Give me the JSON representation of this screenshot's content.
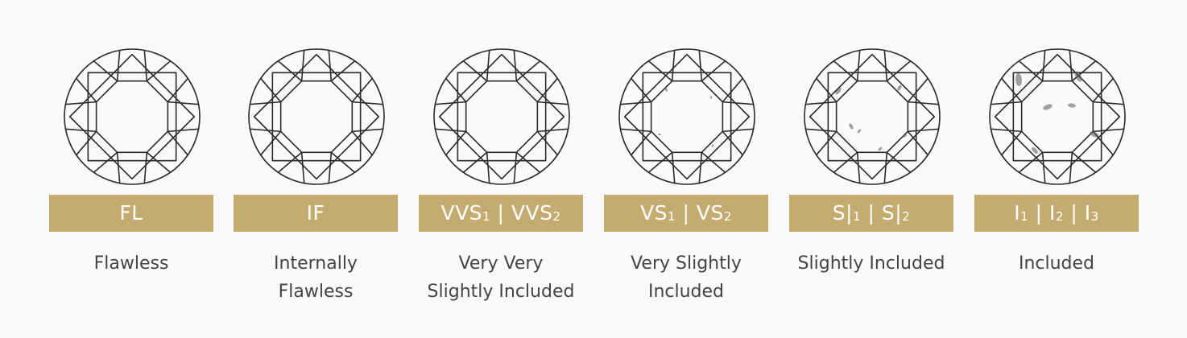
{
  "grades": [
    {
      "code_parts": [
        "FL"
      ],
      "code_subs": [],
      "description_lines": [
        "Flawless"
      ],
      "inclusion_level": 0
    },
    {
      "code_parts": [
        "IF"
      ],
      "code_subs": [],
      "description_lines": [
        "Internally",
        "Flawless"
      ],
      "inclusion_level": 0
    },
    {
      "code_parts": [
        "VVS",
        " | VVS"
      ],
      "code_subs": [
        "1",
        "2"
      ],
      "description_lines": [
        "Very Very",
        "Slightly Included"
      ],
      "inclusion_level": 1
    },
    {
      "code_parts": [
        "VS",
        " | VS"
      ],
      "code_subs": [
        "1",
        "2"
      ],
      "description_lines": [
        "Very Slightly",
        "Included"
      ],
      "inclusion_level": 2
    },
    {
      "code_parts": [
        "S|",
        " | S|"
      ],
      "code_subs": [
        "1",
        "2"
      ],
      "description_lines": [
        "Slightly Included"
      ],
      "inclusion_level": 3
    },
    {
      "code_parts": [
        "I",
        " | I",
        " | I"
      ],
      "code_subs": [
        "1",
        "2",
        "3"
      ],
      "description_lines": [
        "Included"
      ],
      "inclusion_level": 4
    }
  ],
  "colors": {
    "band": "#c4ab6f",
    "band_text": "#ffffff",
    "description_text": "#444444",
    "diamond_line": "#2a2a2a",
    "background": "#fafafa"
  }
}
